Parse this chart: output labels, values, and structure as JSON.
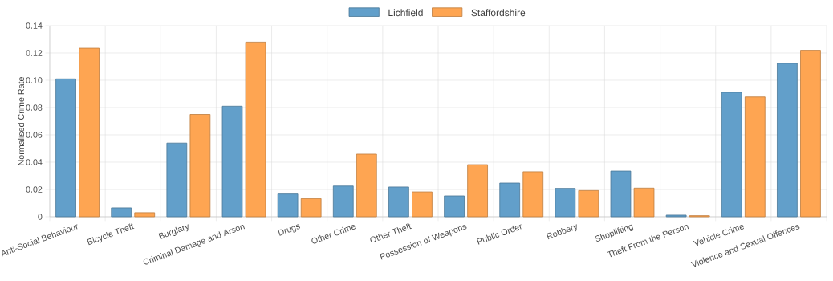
{
  "chart_data": {
    "type": "bar",
    "ylabel": "Normalised Crime Rate",
    "categories": [
      "Anti-Social Behaviour",
      "Bicycle Theft",
      "Burglary",
      "Criminal Damage and Arson",
      "Drugs",
      "Other Crime",
      "Other Theft",
      "Possession of Weapons",
      "Public Order",
      "Robbery",
      "Shoplifting",
      "Theft From the Person",
      "Vehicle Crime",
      "Violence and Sexual Offences"
    ],
    "series": [
      {
        "name": "Lichfield",
        "color": "#629fca",
        "values": [
          0.101,
          0.0065,
          0.054,
          0.081,
          0.0167,
          0.0225,
          0.0218,
          0.0153,
          0.0247,
          0.0208,
          0.0335,
          0.0012,
          0.0912,
          0.1124
        ]
      },
      {
        "name": "Staffordshire",
        "color": "#fea552",
        "values": [
          0.1235,
          0.003,
          0.075,
          0.128,
          0.0133,
          0.0459,
          0.0182,
          0.0382,
          0.033,
          0.0192,
          0.021,
          0.0008,
          0.0878,
          0.122
        ]
      }
    ],
    "ylim": [
      0,
      0.14
    ],
    "yticks": [
      0,
      0.02,
      0.04,
      0.06,
      0.08,
      {
        "value": 0.1,
        "label": "0.10"
      },
      0.12,
      0.14
    ],
    "grid": true,
    "legend": "top"
  }
}
